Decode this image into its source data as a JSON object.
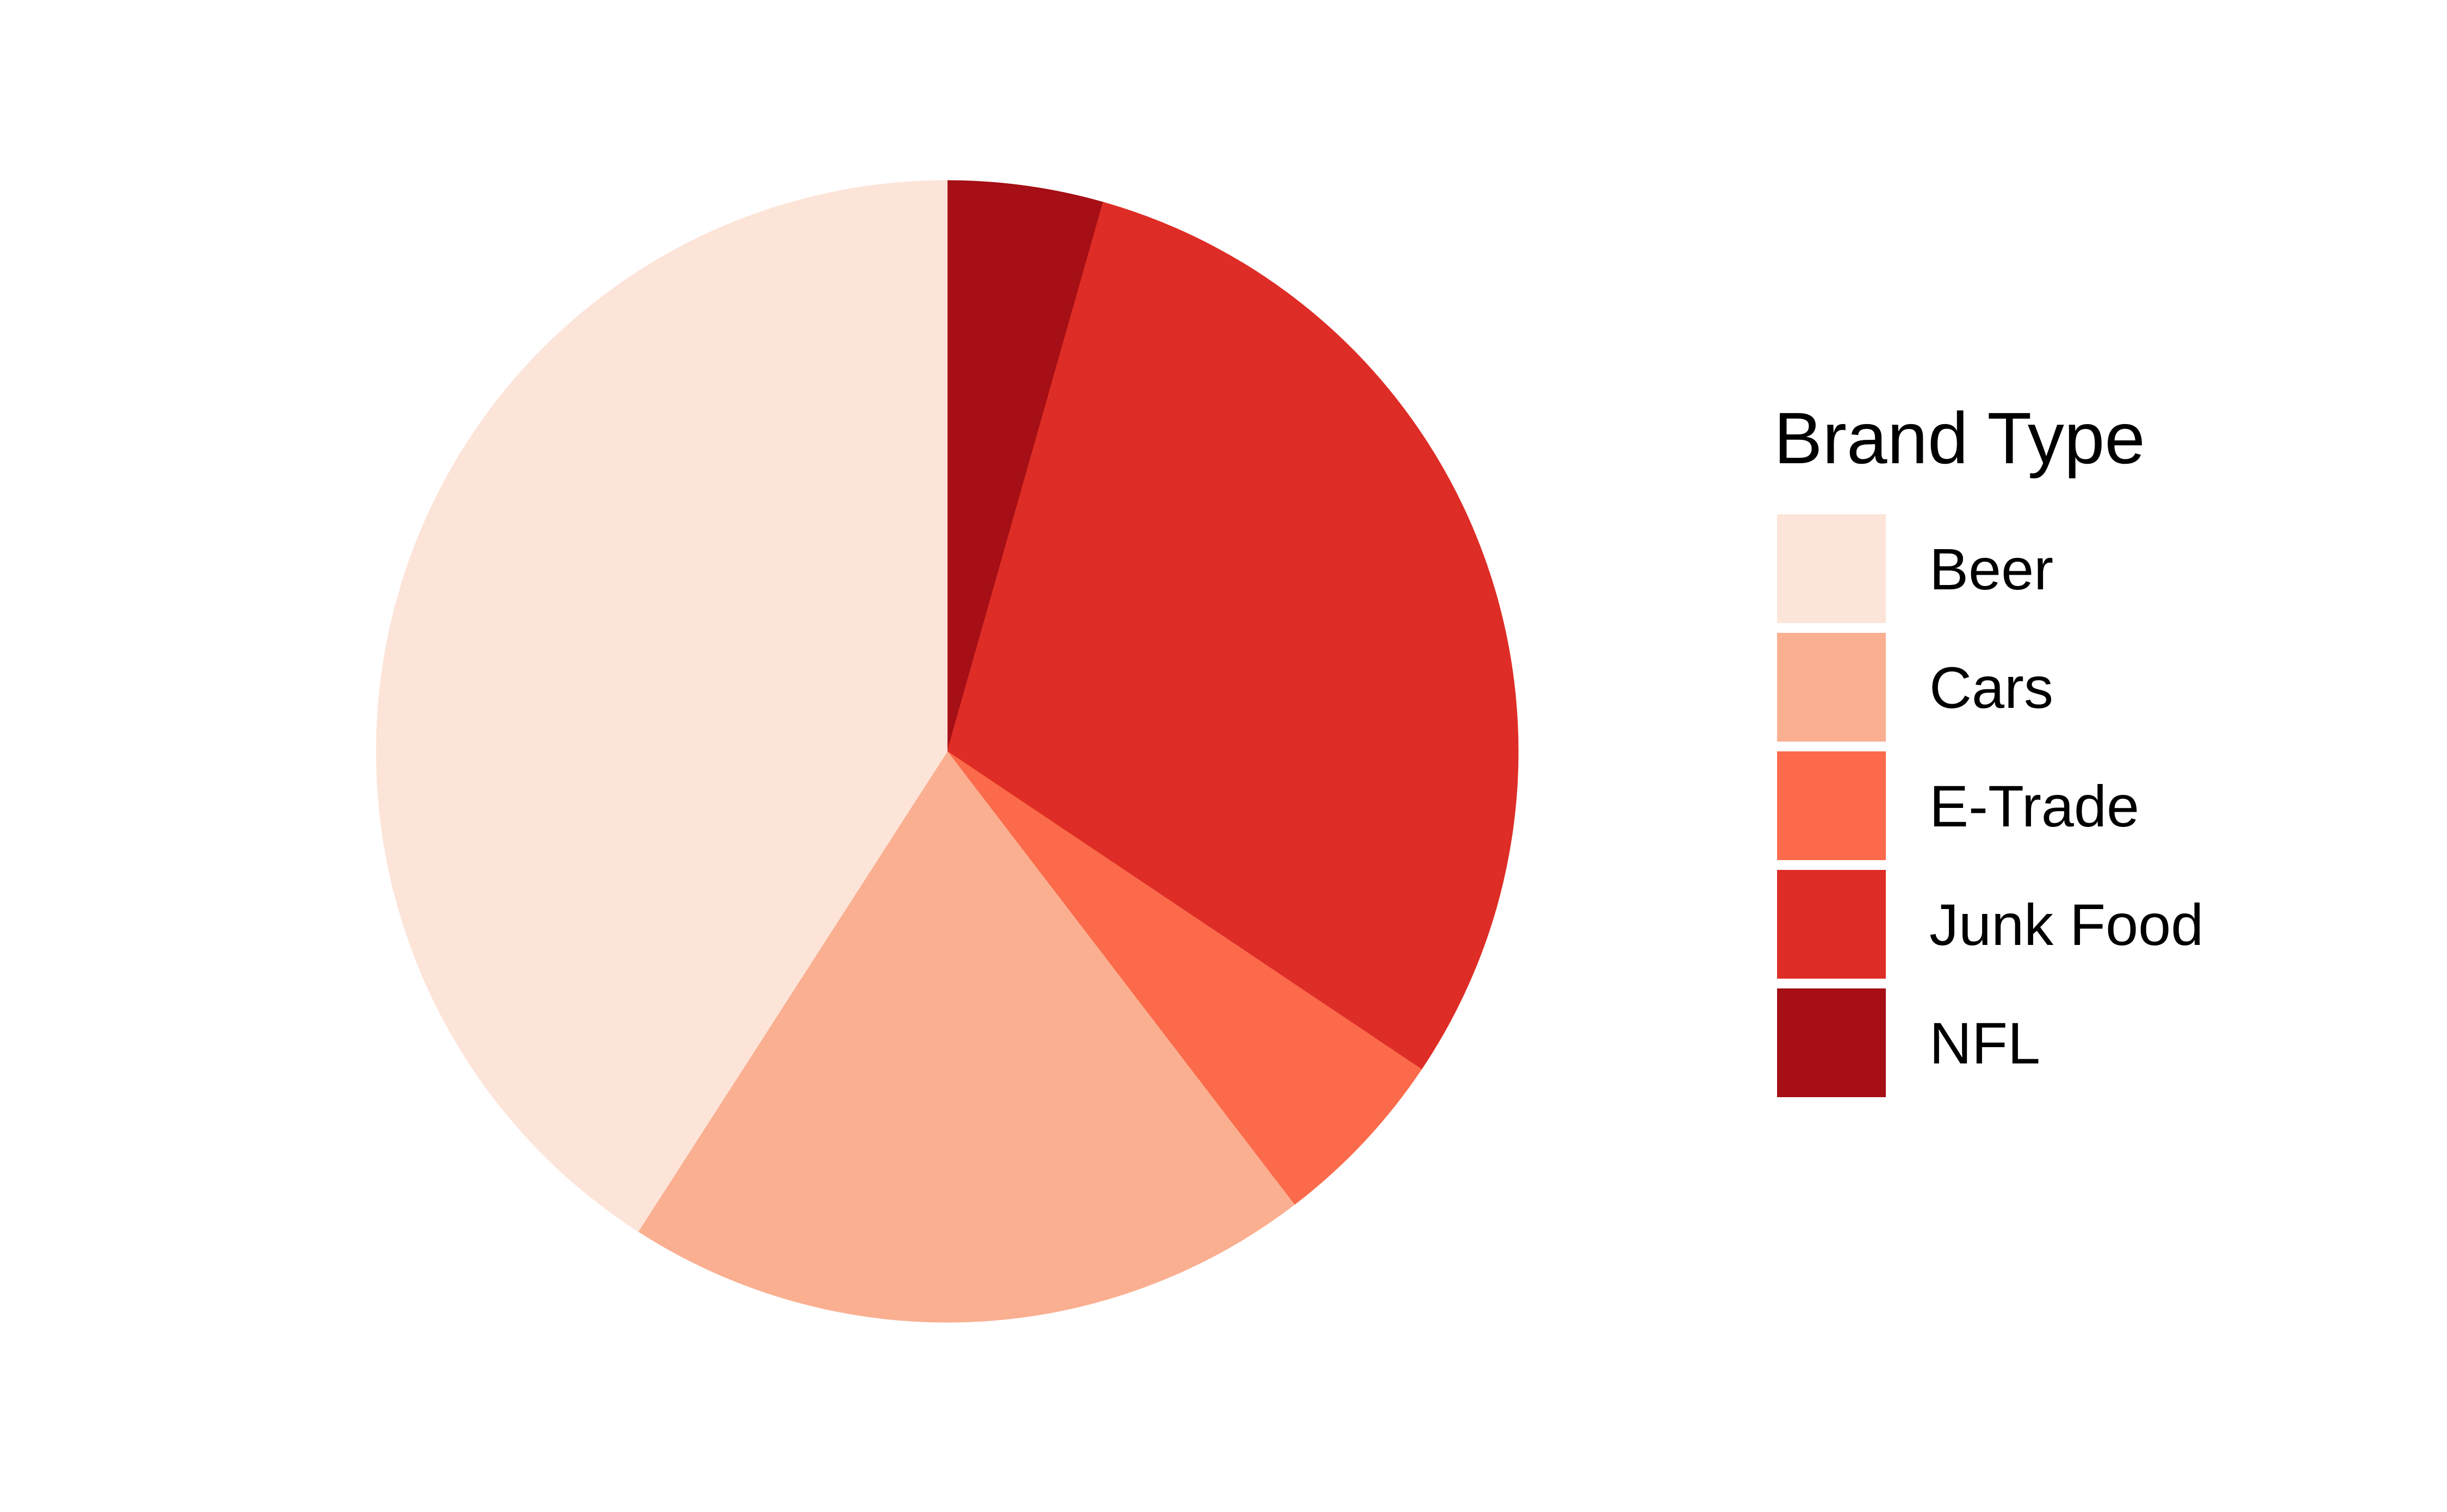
{
  "chart_data": {
    "type": "pie",
    "title": "",
    "legend": {
      "title": "Brand Type",
      "placement": "right"
    },
    "categories": [
      "Beer",
      "Cars",
      "E-Trade",
      "Junk Food",
      "NFL"
    ],
    "values": [
      40.9,
      19.5,
      5.2,
      30.0,
      4.4
    ],
    "colors": [
      "#FDE4D8",
      "#FAAF91",
      "#FB6A4A",
      "#DE2D26",
      "#A50F15"
    ],
    "start": "12 o'clock",
    "direction": "counterclockwise",
    "slice_order": [
      "NFL",
      "Junk Food",
      "E-Trade",
      "Cars",
      "Beer"
    ]
  }
}
